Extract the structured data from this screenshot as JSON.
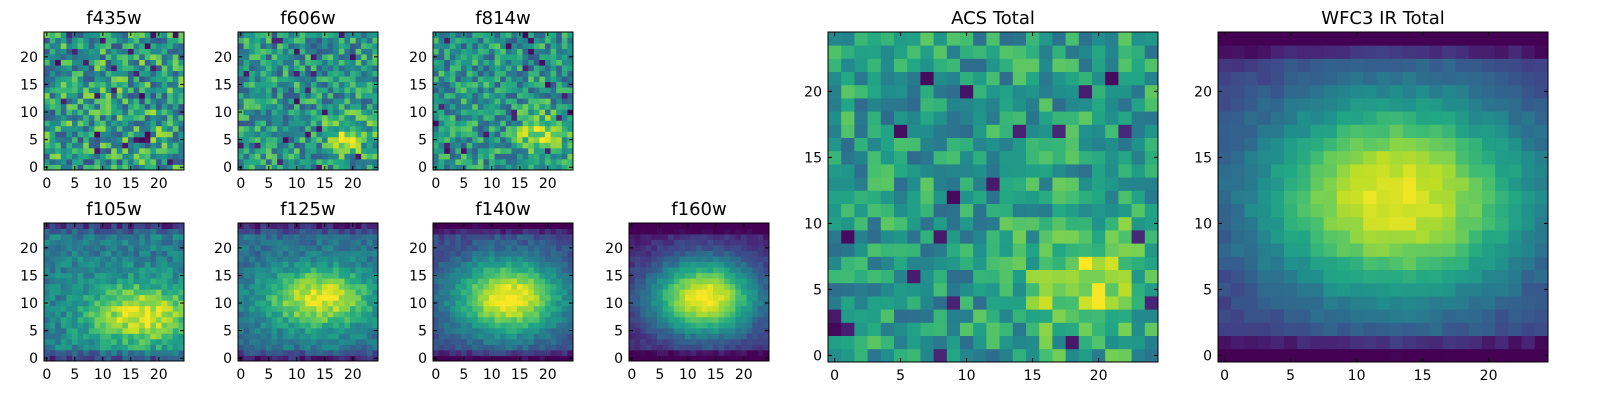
{
  "chart_data": [
    {
      "type": "heatmap",
      "title": "f435w",
      "colormap": "viridis",
      "grid": false,
      "xlim": [
        0,
        24
      ],
      "ylim": [
        0,
        24
      ],
      "shape": [
        25,
        25
      ],
      "xticks": [
        "0",
        "5",
        "10",
        "15",
        "20"
      ],
      "yticks": [
        "0",
        "5",
        "10",
        "15",
        "20"
      ],
      "pattern": "noise",
      "background": 0.55,
      "noise": 0.3,
      "peak": {
        "x": 19,
        "y": 6,
        "amp": 0.06,
        "sx": 3,
        "sy": 3
      }
    },
    {
      "type": "heatmap",
      "title": "f606w",
      "colormap": "viridis",
      "grid": false,
      "xlim": [
        0,
        24
      ],
      "ylim": [
        0,
        24
      ],
      "shape": [
        25,
        25
      ],
      "xticks": [
        "0",
        "5",
        "10",
        "15",
        "20"
      ],
      "yticks": [
        "0",
        "5",
        "10",
        "15",
        "20"
      ],
      "pattern": "noise+source",
      "background": 0.52,
      "noise": 0.26,
      "peak": {
        "x": 19,
        "y": 6,
        "amp": 0.3,
        "sx": 3,
        "sy": 2.5
      }
    },
    {
      "type": "heatmap",
      "title": "f814w",
      "colormap": "viridis",
      "grid": false,
      "xlim": [
        0,
        24
      ],
      "ylim": [
        0,
        24
      ],
      "shape": [
        25,
        25
      ],
      "xticks": [
        "0",
        "5",
        "10",
        "15",
        "20"
      ],
      "yticks": [
        "0",
        "5",
        "10",
        "15",
        "20"
      ],
      "pattern": "noise+source",
      "background": 0.52,
      "noise": 0.24,
      "peak": {
        "x": 19,
        "y": 6,
        "amp": 0.38,
        "sx": 3,
        "sy": 2.5
      }
    },
    {
      "type": "heatmap",
      "title": "f105w",
      "colormap": "viridis",
      "grid": false,
      "xlim": [
        0,
        24
      ],
      "ylim": [
        0,
        24
      ],
      "shape": [
        25,
        25
      ],
      "xticks": [
        "0",
        "5",
        "10",
        "15",
        "20"
      ],
      "yticks": [
        "0",
        "5",
        "10",
        "15",
        "20"
      ],
      "pattern": "extended",
      "background": 0.42,
      "noise": 0.12,
      "peak": {
        "x": 17,
        "y": 8,
        "amp": 0.55,
        "sx": 7,
        "sy": 4
      }
    },
    {
      "type": "heatmap",
      "title": "f125w",
      "colormap": "viridis",
      "grid": false,
      "xlim": [
        0,
        24
      ],
      "ylim": [
        0,
        24
      ],
      "shape": [
        25,
        25
      ],
      "xticks": [
        "0",
        "5",
        "10",
        "15",
        "20"
      ],
      "yticks": [
        "0",
        "5",
        "10",
        "15",
        "20"
      ],
      "pattern": "extended",
      "background": 0.35,
      "noise": 0.1,
      "peak": {
        "x": 14,
        "y": 11,
        "amp": 0.62,
        "sx": 7,
        "sy": 4
      }
    },
    {
      "type": "heatmap",
      "title": "f140w",
      "colormap": "viridis",
      "grid": false,
      "xlim": [
        0,
        24
      ],
      "ylim": [
        0,
        24
      ],
      "shape": [
        25,
        25
      ],
      "xticks": [
        "0",
        "5",
        "10",
        "15",
        "20"
      ],
      "yticks": [
        "0",
        "5",
        "10",
        "15",
        "20"
      ],
      "pattern": "extended",
      "background": 0.2,
      "noise": 0.07,
      "peak": {
        "x": 13,
        "y": 11,
        "amp": 0.8,
        "sx": 7,
        "sy": 5
      }
    },
    {
      "type": "heatmap",
      "title": "f160w",
      "colormap": "viridis",
      "grid": false,
      "xlim": [
        0,
        24
      ],
      "ylim": [
        0,
        24
      ],
      "shape": [
        25,
        25
      ],
      "xticks": [
        "0",
        "5",
        "10",
        "15",
        "20"
      ],
      "yticks": [
        "0",
        "5",
        "10",
        "15",
        "20"
      ],
      "pattern": "extended",
      "background": 0.08,
      "noise": 0.05,
      "peak": {
        "x": 13,
        "y": 11,
        "amp": 0.92,
        "sx": 7,
        "sy": 5
      }
    },
    {
      "type": "heatmap",
      "title": "ACS Total",
      "colormap": "viridis",
      "grid": false,
      "xlim": [
        0,
        24
      ],
      "ylim": [
        0,
        24
      ],
      "shape": [
        25,
        25
      ],
      "xticks": [
        "0",
        "5",
        "10",
        "15",
        "20"
      ],
      "yticks": [
        "0",
        "5",
        "10",
        "15",
        "20"
      ],
      "pattern": "noise+source",
      "background": 0.55,
      "noise": 0.2,
      "peak": {
        "x": 19,
        "y": 6,
        "amp": 0.38,
        "sx": 3,
        "sy": 3
      }
    },
    {
      "type": "heatmap",
      "title": "WFC3 IR Total",
      "colormap": "viridis",
      "grid": false,
      "xlim": [
        0,
        24
      ],
      "ylim": [
        0,
        24
      ],
      "shape": [
        25,
        25
      ],
      "xticks": [
        "0",
        "5",
        "10",
        "15",
        "20"
      ],
      "yticks": [
        "0",
        "5",
        "10",
        "15",
        "20"
      ],
      "pattern": "extended",
      "background": 0.12,
      "noise": 0.04,
      "peak": {
        "x": 13,
        "y": 12,
        "amp": 0.85,
        "sx": 8,
        "sy": 6
      }
    }
  ]
}
